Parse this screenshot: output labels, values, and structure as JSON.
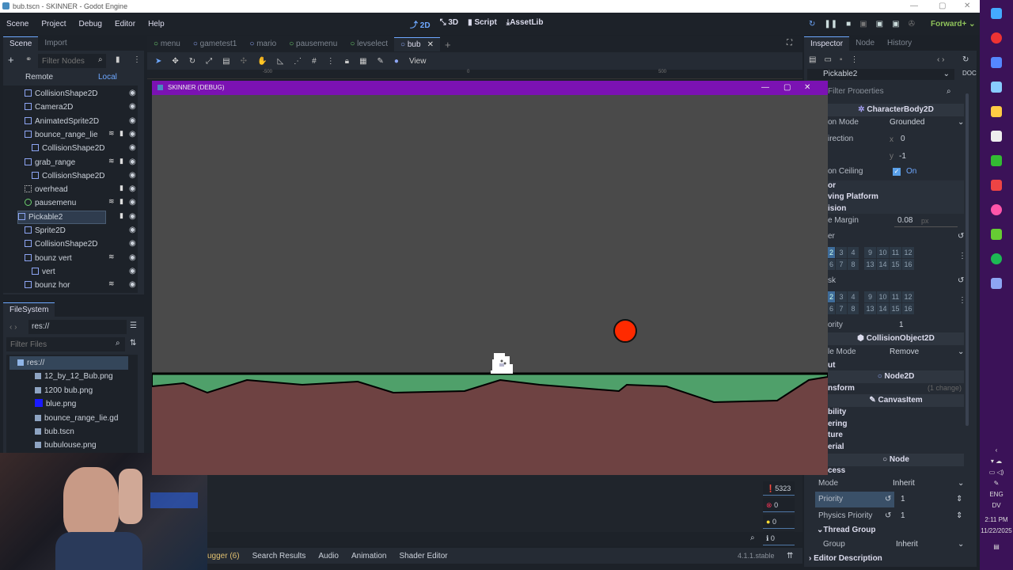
{
  "window": {
    "title": "bub.tscn - SKINNER - Godot Engine"
  },
  "menu": [
    "Scene",
    "Project",
    "Debug",
    "Editor",
    "Help"
  ],
  "modes": [
    {
      "label": "2D",
      "icon": "2d-icon"
    },
    {
      "label": "3D",
      "icon": "3d-icon"
    },
    {
      "label": "Script",
      "icon": "script-icon"
    },
    {
      "label": "AssetLib",
      "icon": "download-icon"
    }
  ],
  "renderer": "Forward+",
  "scene_dock": {
    "tabs": [
      "Scene",
      "Import"
    ],
    "filter_placeholder": "Filter Nodes",
    "remote": "Remote",
    "local": "Local",
    "nodes": [
      {
        "name": "CollisionShape2D",
        "indent": 1,
        "icon": "collision-shape-icon"
      },
      {
        "name": "Camera2D",
        "indent": 1,
        "icon": "camera-icon"
      },
      {
        "name": "AnimatedSprite2D",
        "indent": 1,
        "icon": "animated-sprite-icon"
      },
      {
        "name": "bounce_range_lie",
        "indent": 1,
        "icon": "area-icon",
        "signal": true,
        "script": true
      },
      {
        "name": "CollisionShape2D",
        "indent": 2,
        "icon": "collision-shape-icon"
      },
      {
        "name": "grab_range",
        "indent": 1,
        "icon": "area-icon",
        "signal": true,
        "script": true
      },
      {
        "name": "CollisionShape2D",
        "indent": 2,
        "icon": "collision-shape-icon"
      },
      {
        "name": "overhead",
        "indent": 1,
        "icon": "marker-icon",
        "script": true
      },
      {
        "name": "pausemenu",
        "indent": 1,
        "icon": "scene-instance-icon",
        "signal": true,
        "script": true
      },
      {
        "name": "Pickable2",
        "indent": 0,
        "icon": "character-body-icon",
        "script": true,
        "selected": true
      },
      {
        "name": "Sprite2D",
        "indent": 1,
        "icon": "sprite-icon"
      },
      {
        "name": "CollisionShape2D",
        "indent": 1,
        "icon": "collision-shape-icon"
      },
      {
        "name": "bounz vert",
        "indent": 1,
        "icon": "area-icon",
        "signal": true
      },
      {
        "name": "vert",
        "indent": 2,
        "icon": "collision-shape-icon"
      },
      {
        "name": "bounz hor",
        "indent": 1,
        "icon": "area-icon",
        "signal": true
      }
    ]
  },
  "filesystem": {
    "title": "FileSystem",
    "path": "res://",
    "filter_placeholder": "Filter Files",
    "items": [
      {
        "name": "res://",
        "icon": "folder-icon",
        "selected": true
      },
      {
        "name": "12_by_12_Bub.png",
        "icon": "image-icon"
      },
      {
        "name": "1200 bub.png",
        "icon": "image-icon"
      },
      {
        "name": "blue.png",
        "icon": "blue-swatch-icon"
      },
      {
        "name": "bounce_range_lie.gd",
        "icon": "gear-icon"
      },
      {
        "name": "bub.tscn",
        "icon": "scene-icon"
      },
      {
        "name": "bubulouse.png",
        "icon": "image-icon"
      }
    ]
  },
  "scene_tabs": [
    {
      "label": "menu",
      "color": "#6fd36f"
    },
    {
      "label": "gametest1",
      "color": "#8da5f3"
    },
    {
      "label": "mario",
      "color": "#8da5f3"
    },
    {
      "label": "pausemenu",
      "color": "#6fd36f"
    },
    {
      "label": "levselect",
      "color": "#6fd36f"
    },
    {
      "label": "bub",
      "color": "#8da5f3",
      "active": true
    }
  ],
  "viewport": {
    "view_label": "View",
    "ruler": [
      "-500",
      "0",
      "500"
    ]
  },
  "game_window": {
    "title": "SKINNER (DEBUG)",
    "bar_color": "#7b12b3",
    "bg_color": "#4a4a4a",
    "ground_color": "#4fa06a",
    "dirt_color": "#6e4242",
    "ball_color": "#ff2a00"
  },
  "inspector": {
    "tabs": [
      "Inspector",
      "Node",
      "History"
    ],
    "node": "Pickable2",
    "filter_placeholder": "Filter Properties",
    "sections": {
      "character_body": "CharacterBody2D",
      "collision_object": "CollisionObject2D",
      "node2d": "Node2D",
      "canvas_item": "CanvasItem",
      "node": "Node"
    },
    "props": {
      "motion_mode_label": "on Mode",
      "motion_mode": "Grounded",
      "up_direction_label": "irection",
      "up_x_label": "x",
      "up_x": "0",
      "up_y_label": "y",
      "up_y": "-1",
      "slide_ceiling_label": "on Ceiling",
      "slide_ceiling": "On",
      "floor_label": "or",
      "moving_platform_label": "ving Platform",
      "collision_label": "ision",
      "safe_margin_label": "e Margin",
      "safe_margin": "0.08",
      "safe_margin_unit": "px",
      "layer_label": "er",
      "mask_label": "sk",
      "priority_label": "ority",
      "priority": "1",
      "disable_mode_label": "le Mode",
      "disable_mode": "Remove",
      "input_label": "ut",
      "transform_label": "nsform",
      "transform_changes": "(1 change)",
      "visibility_label": "bility",
      "ordering_label": "ering",
      "texture_label": "ture",
      "material_label": "erial",
      "process_label": "cess",
      "mode_label": "Mode",
      "mode": "Inherit",
      "proc_priority_label": "Priority",
      "proc_priority": "1",
      "physics_priority_label": "Physics Priority",
      "physics_priority": "1",
      "thread_group_label": "Thread Group",
      "group_label": "Group",
      "group": "Inherit",
      "editor_description_label": "Editor Description"
    },
    "layers": [
      "2",
      "3",
      "4",
      "9",
      "10",
      "11",
      "12",
      "6",
      "7",
      "8",
      "13",
      "14",
      "15",
      "16"
    ]
  },
  "bottom": {
    "tabs": [
      "ugger (6)",
      "Search Results",
      "Audio",
      "Animation",
      "Shader Editor"
    ],
    "version": "4.1.1.stable",
    "counts": {
      "messages": "5323",
      "errors": "0",
      "warnings": "0",
      "info": "0"
    }
  },
  "taskbar": {
    "lang": "ENG",
    "layout": "DV",
    "time": "2:11 PM",
    "date": "11/22/2025",
    "apps": [
      "windows-icon",
      "opera-icon",
      "discord-icon",
      "steam-icon",
      "file-explorer-icon",
      "app-icon",
      "minecraft-icon",
      "app-icon",
      "osu-icon",
      "nvidia-icon",
      "spotify-icon",
      "godot-icon"
    ]
  }
}
